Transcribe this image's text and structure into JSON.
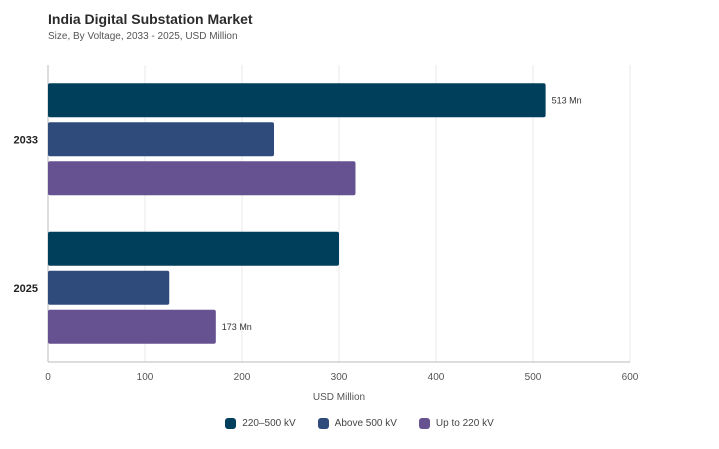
{
  "title": "India Digital Substation Market",
  "subtitle": "Size, By Voltage, 2033  -  2025, USD Million",
  "chart_data": {
    "type": "bar",
    "orientation": "horizontal",
    "categories": [
      "2033",
      "2025"
    ],
    "series": [
      {
        "name": "220–500 kV",
        "color": "#003f5c",
        "values": [
          513,
          300
        ]
      },
      {
        "name": "Above 500 kV",
        "color": "#2f4b7c",
        "values": [
          233,
          125
        ]
      },
      {
        "name": "Up to 220 kV",
        "color": "#665191",
        "values": [
          317,
          173
        ]
      }
    ],
    "data_labels": [
      {
        "series": 0,
        "category": 0,
        "text": "513 Mn"
      },
      {
        "series": 2,
        "category": 1,
        "text": "173 Mn"
      }
    ],
    "xlabel": "USD Million",
    "ylabel": "",
    "xlim": [
      0,
      600
    ],
    "xticks": [
      0,
      100,
      200,
      300,
      400,
      500,
      600
    ],
    "grid": true,
    "legend_position": "bottom"
  }
}
